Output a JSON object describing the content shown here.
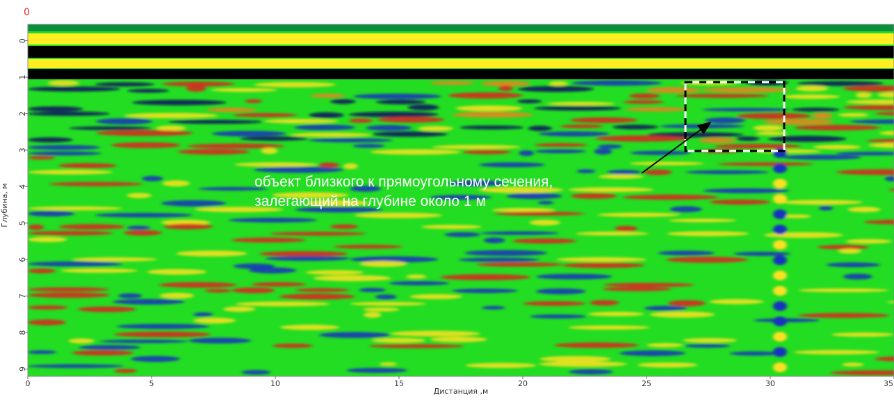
{
  "chart_data": {
    "type": "heatmap",
    "corner_label": "0",
    "xlabel": "Дистанция ,м",
    "ylabel": "Глубина, м",
    "xlim": [
      0,
      35
    ],
    "xticks": [
      0,
      5,
      10,
      15,
      20,
      25,
      30,
      35
    ],
    "ylim": [
      9.2,
      -0.45
    ],
    "yticks": [
      0,
      1,
      2,
      3,
      4,
      5,
      6,
      7,
      8,
      9
    ],
    "annotation": [
      "объект близкого к прямоугольному сечения,",
      "залегающий на глубине около 1 м"
    ]
  }
}
